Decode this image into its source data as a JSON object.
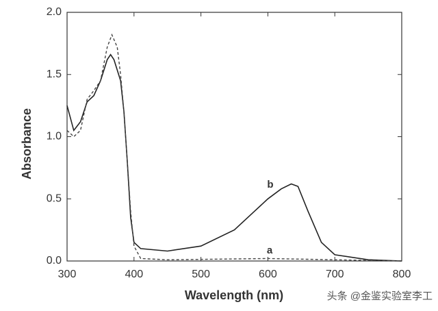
{
  "chart_data": {
    "type": "line",
    "x_label": "Wavelength (nm)",
    "y_label": "Absorbance",
    "xlim": [
      300,
      800
    ],
    "ylim": [
      0,
      2
    ],
    "xticks": [
      300,
      400,
      500,
      600,
      700,
      800
    ],
    "yticks": [
      {
        "value": 0,
        "label": "0.0"
      },
      0.5,
      {
        "value": 1,
        "label": "1.0"
      },
      1.5,
      {
        "value": 2,
        "label": "2.0"
      }
    ],
    "series": [
      {
        "name": "b",
        "color": "#222222",
        "dash": false,
        "x": [
          300,
          310,
          320,
          330,
          340,
          350,
          360,
          365,
          370,
          380,
          385,
          390,
          395,
          400,
          410,
          450,
          500,
          550,
          580,
          600,
          620,
          635,
          645,
          660,
          680,
          700,
          750,
          800
        ],
        "values": [
          1.25,
          1.05,
          1.12,
          1.28,
          1.33,
          1.45,
          1.62,
          1.66,
          1.62,
          1.45,
          1.2,
          0.8,
          0.35,
          0.15,
          0.1,
          0.08,
          0.12,
          0.25,
          0.4,
          0.5,
          0.58,
          0.62,
          0.6,
          0.4,
          0.15,
          0.05,
          0.01,
          0
        ]
      },
      {
        "name": "a",
        "color": "#444444",
        "dash": true,
        "x": [
          300,
          310,
          320,
          330,
          340,
          350,
          360,
          367,
          375,
          380,
          385,
          390,
          395,
          400,
          410,
          450,
          600,
          700,
          800
        ],
        "values": [
          1.05,
          1.0,
          1.05,
          1.3,
          1.37,
          1.45,
          1.72,
          1.82,
          1.72,
          1.5,
          1.2,
          0.8,
          0.4,
          0.12,
          0.02,
          0.01,
          0.02,
          0.01,
          0
        ]
      }
    ]
  },
  "watermark": "头条 @金鉴实验室李工"
}
